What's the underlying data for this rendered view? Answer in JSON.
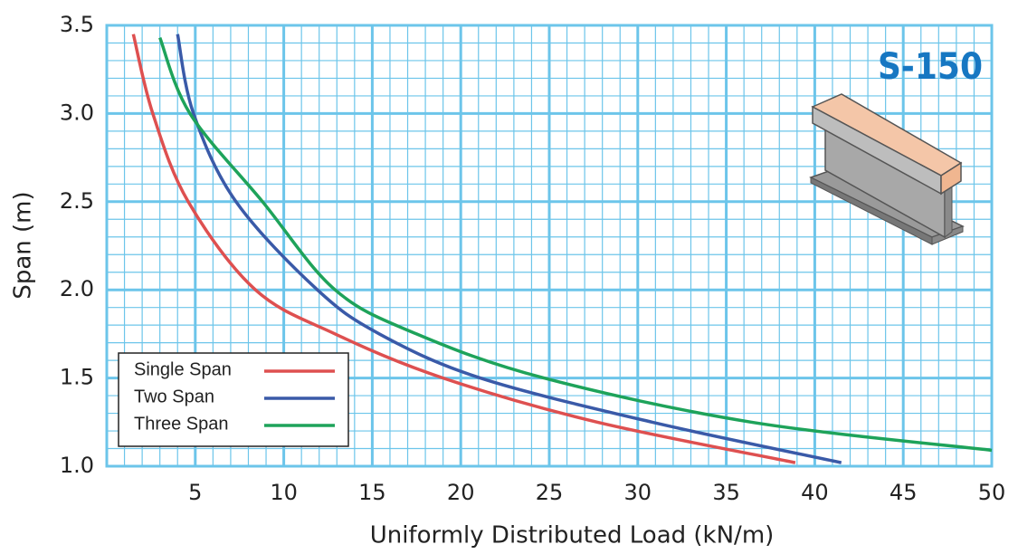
{
  "chart_data": {
    "type": "line",
    "badge": "S-150",
    "x_label": "Uniformly Distributed Load (kN/m)",
    "y_label": "Span (m)",
    "xlim": [
      0,
      50
    ],
    "xticks": [
      5,
      10,
      15,
      20,
      25,
      30,
      35,
      40,
      45,
      50
    ],
    "ylim": [
      1.0,
      3.5
    ],
    "yticks": [
      {
        "value": 1.0,
        "label": "1.0"
      },
      1.5,
      {
        "value": 2.0,
        "label": "2.0"
      },
      2.5,
      {
        "value": 3.0,
        "label": "3.0"
      },
      3.5
    ],
    "grid": true,
    "grid_color": "#6cc5ea",
    "legend": "lower left",
    "series": [
      {
        "name": "Single Span",
        "color": "#de5050",
        "x": [
          1.5,
          2.6,
          4.6,
          8.4,
          12.9,
          19.0,
          27.7,
          38.9
        ],
        "values": [
          3.45,
          3.0,
          2.5,
          2.0,
          1.75,
          1.5,
          1.25,
          1.02
        ]
      },
      {
        "name": "Two Span",
        "color": "#3a5aa8",
        "x": [
          4.0,
          4.9,
          7.3,
          11.9,
          15.4,
          21.1,
          30.8,
          41.5
        ],
        "values": [
          3.45,
          3.0,
          2.5,
          2.0,
          1.75,
          1.5,
          1.25,
          1.02
        ]
      },
      {
        "name": "Three Span",
        "color": "#1ea35a",
        "x": [
          3.0,
          4.7,
          8.8,
          12.9,
          17.5,
          24.7,
          36.4,
          50
        ],
        "values": [
          3.43,
          3.0,
          2.5,
          2.0,
          1.75,
          1.5,
          1.25,
          1.09
        ]
      }
    ]
  }
}
